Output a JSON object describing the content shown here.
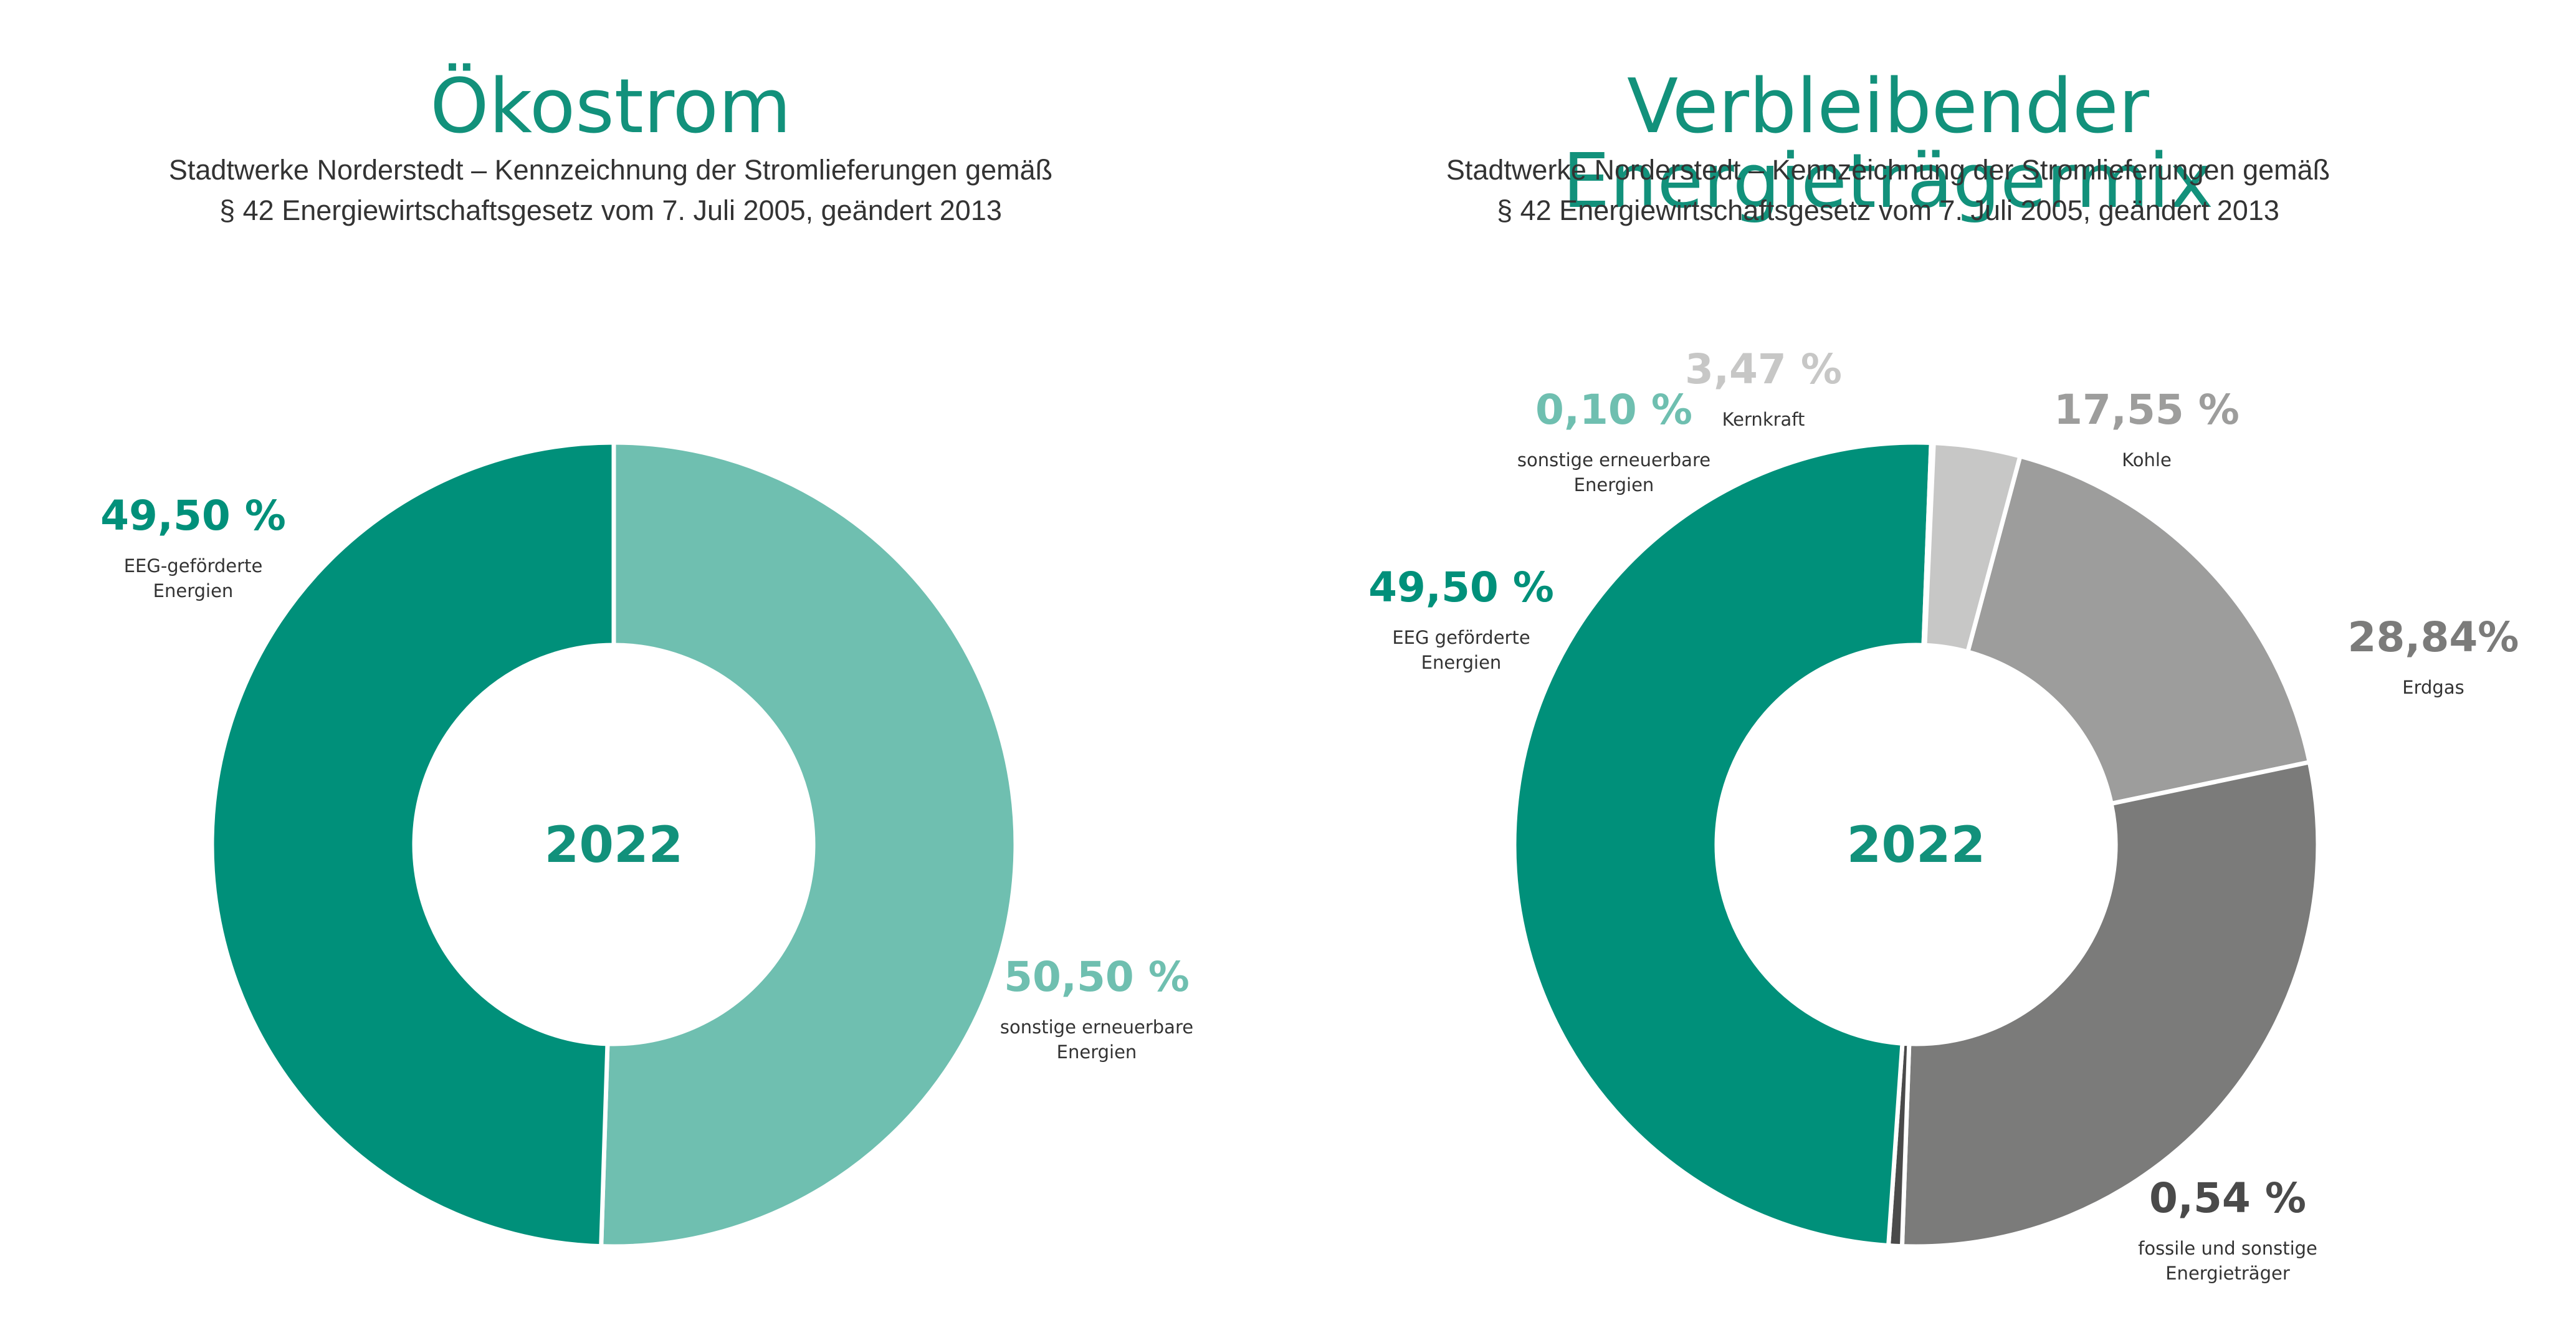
{
  "chart_data": [
    {
      "type": "pie",
      "title": "Ökostrom",
      "subtitle": [
        "Stadtwerke Norderstedt – Kennzeichnung der Stromlieferungen gemäß",
        "§ 42 Energiewirtschaftsgesetz vom 7. Juli 2005, geändert 2013"
      ],
      "center_label": "2022",
      "slices": [
        {
          "value_label": "50,50 %",
          "value": 50.5,
          "label": [
            "sonstige erneuerbare",
            "Energien"
          ],
          "color": "#6fbfb0"
        },
        {
          "value_label": "49,50 %",
          "value": 49.5,
          "label": [
            "EEG-geförderte",
            "Energien"
          ],
          "color": "#00907a"
        }
      ]
    },
    {
      "type": "pie",
      "title": "Verbleibender Energieträgermix",
      "subtitle": [
        "Stadtwerke Norderstedt – Kennzeichnung der Stromlieferungen gemäß",
        "§ 42 Energiewirtschaftsgesetz vom 7. Juli 2005, geändert 2013"
      ],
      "center_label": "2022",
      "slices": [
        {
          "value_label": "17,55 %",
          "value": 17.55,
          "label": [
            "Kohle"
          ],
          "color": "#9d9d9c"
        },
        {
          "value_label": "28,84%",
          "value": 28.84,
          "label": [
            "Erdgas"
          ],
          "color": "#7b7b7a"
        },
        {
          "value_label": "0,54 %",
          "value": 0.54,
          "label": [
            "fossile und sonstige",
            "Energieträger"
          ],
          "color": "#4a4a4a"
        },
        {
          "value_label": "49,50 %",
          "value": 49.5,
          "label": [
            "EEG geförderte",
            "Energien"
          ],
          "color": "#00907a"
        },
        {
          "value_label": "0,10 %",
          "value": 0.1,
          "label": [
            "sonstige erneuerbare",
            "Energien"
          ],
          "color": "#6fbfb0"
        },
        {
          "value_label": "3,47 %",
          "value": 3.47,
          "label": [
            "Kernkraft"
          ],
          "color": "#c7c7c6"
        }
      ]
    }
  ],
  "colors": {
    "title": "#12917b",
    "subtitle": "#333333",
    "center_label": "#12917b",
    "label_text": "#333333",
    "separator": "#ffffff"
  }
}
